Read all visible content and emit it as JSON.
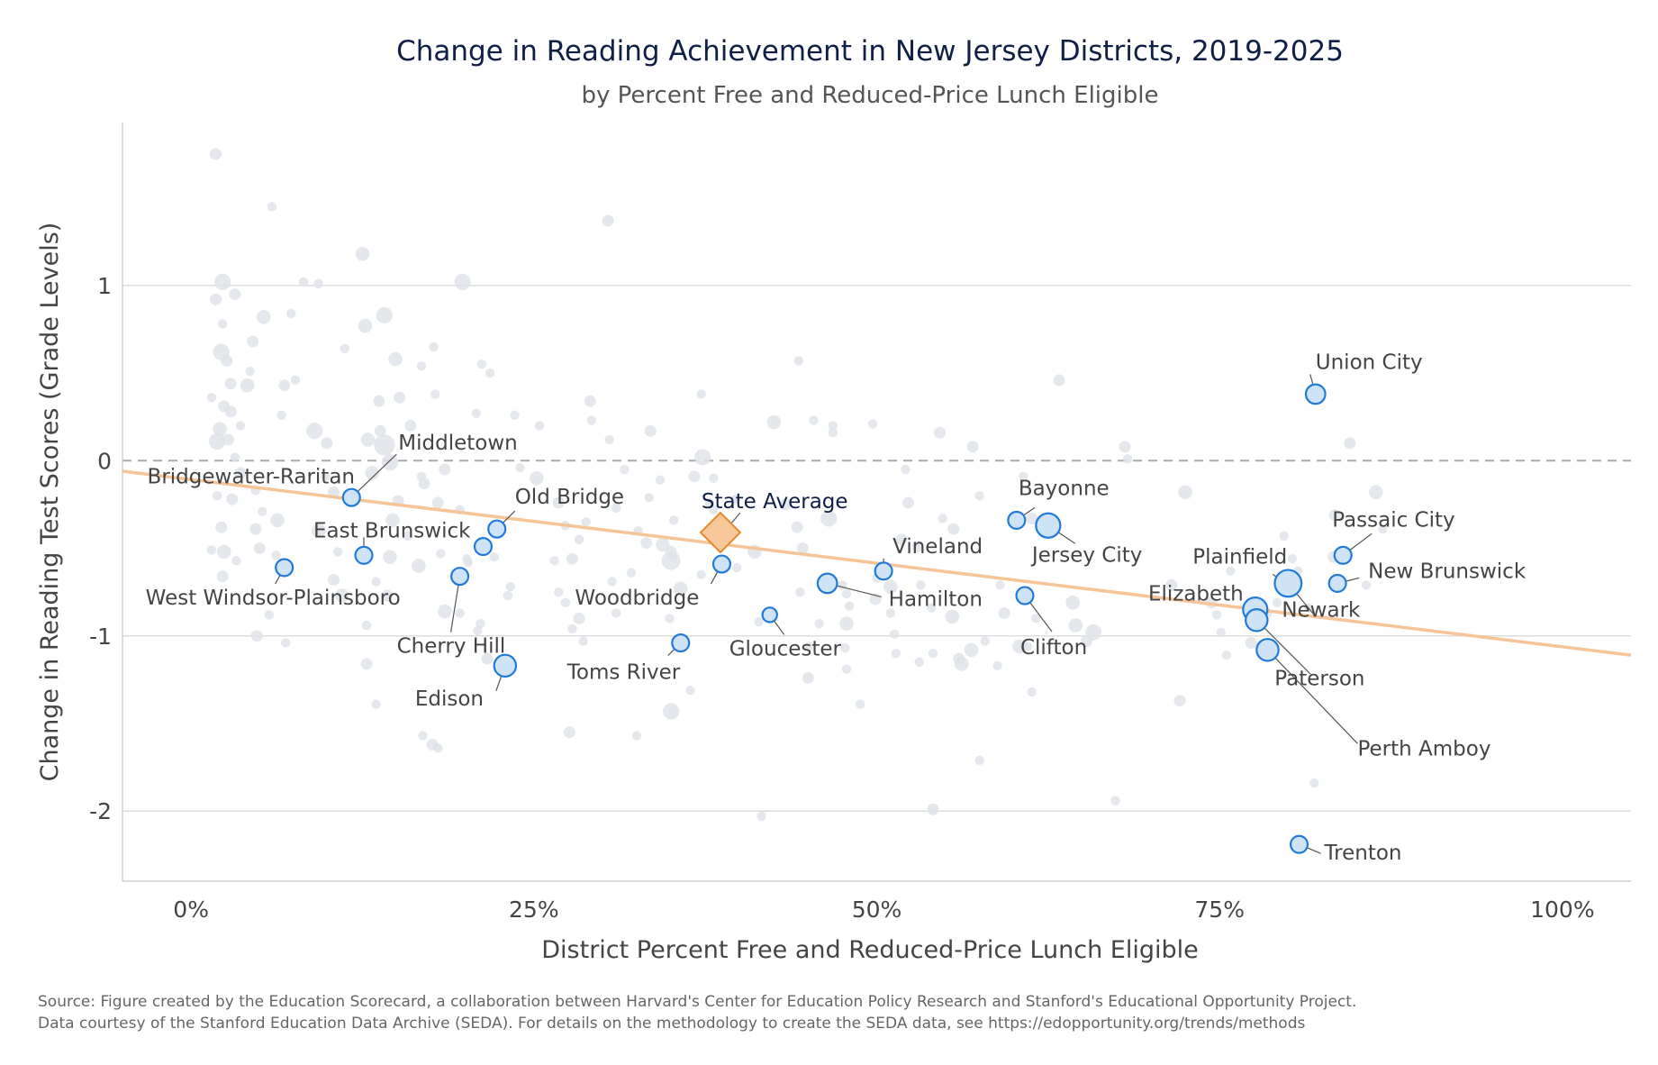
{
  "title": "Change in Reading Achievement in New Jersey Districts, 2019-2025",
  "subtitle": "by Percent Free and Reduced-Price Lunch Eligible",
  "source_line1": "Source: Figure created by the Education Scorecard, a collaboration between Harvard's Center for Education Policy Research and Stanford's Educational Opportunity Project.",
  "source_line2": "Data courtesy of the Stanford Education Data Archive (SEDA). For details on the methodology to create the SEDA data, see https://edopportunity.org/trends/methods",
  "colors": {
    "background_point": "#dfe3e8",
    "highlight_fill": "#cfe3f6",
    "highlight_stroke": "#1f7ad8",
    "state_fill": "#f8c79a",
    "state_stroke": "#e58a2e",
    "trend_line": "#f6c496",
    "grid": "#dddddd",
    "zero_line": "#aaaaaa"
  },
  "chart_data": {
    "type": "scatter",
    "title": "Change in Reading Achievement in New Jersey Districts, 2019-2025",
    "subtitle": "by Percent Free and Reduced-Price Lunch Eligible",
    "xlabel": "District Percent Free and Reduced-Price Lunch Eligible",
    "ylabel": "Change in Reading Test Scores (Grade Levels)",
    "xlim": [
      -0.05,
      1.05
    ],
    "ylim": [
      -2.4,
      1.93
    ],
    "x_ticks": [
      {
        "value": 0,
        "label": "0%"
      },
      {
        "value": 0.25,
        "label": "25%"
      },
      {
        "value": 0.5,
        "label": "50%"
      },
      {
        "value": 0.75,
        "label": "75%"
      },
      {
        "value": 1.0,
        "label": "100%"
      }
    ],
    "y_ticks": [
      {
        "value": 1,
        "label": "1"
      },
      {
        "value": 0,
        "label": "0"
      },
      {
        "value": -1,
        "label": "-1"
      },
      {
        "value": -2,
        "label": "-2"
      }
    ],
    "grid": "horizontal",
    "zero_line": "dashed",
    "trend_line": {
      "x": [
        -0.05,
        1.05
      ],
      "y": [
        -0.06,
        -1.11
      ]
    },
    "state_average": {
      "name": "State Average",
      "x": 0.386,
      "y": -0.41
    },
    "highlighted": [
      {
        "name": "Union City",
        "x": 0.82,
        "y": 0.38,
        "size": 8
      },
      {
        "name": "Middletown",
        "x": 0.117,
        "y": -0.21,
        "size": 7
      },
      {
        "name": "Bridgewater-Raritan",
        "x": 0.126,
        "y": -0.54,
        "size": 7
      },
      {
        "name": "Old Bridge",
        "x": 0.223,
        "y": -0.39,
        "size": 7
      },
      {
        "name": "East Brunswick",
        "x": 0.213,
        "y": -0.49,
        "size": 7
      },
      {
        "name": "West Windsor-Plainsboro",
        "x": 0.068,
        "y": -0.61,
        "size": 7
      },
      {
        "name": "Cherry Hill",
        "x": 0.196,
        "y": -0.66,
        "size": 7
      },
      {
        "name": "Edison",
        "x": 0.229,
        "y": -1.17,
        "size": 9
      },
      {
        "name": "Woodbridge",
        "x": 0.387,
        "y": -0.59,
        "size": 7
      },
      {
        "name": "Toms River",
        "x": 0.357,
        "y": -1.04,
        "size": 7
      },
      {
        "name": "Gloucester",
        "x": 0.422,
        "y": -0.88,
        "size": 6
      },
      {
        "name": "Hamilton",
        "x": 0.464,
        "y": -0.7,
        "size": 8
      },
      {
        "name": "Vineland",
        "x": 0.505,
        "y": -0.63,
        "size": 7
      },
      {
        "name": "Bayonne",
        "x": 0.602,
        "y": -0.34,
        "size": 7
      },
      {
        "name": "Jersey City",
        "x": 0.625,
        "y": -0.37,
        "size": 10
      },
      {
        "name": "Clifton",
        "x": 0.608,
        "y": -0.77,
        "size": 7
      },
      {
        "name": "Plainfield",
        "x": 0.798,
        "y": -0.7,
        "size": 8
      },
      {
        "name": "Newark",
        "x": 0.8,
        "y": -0.7,
        "size": 11
      },
      {
        "name": "Elizabeth",
        "x": 0.776,
        "y": -0.85,
        "size": 10
      },
      {
        "name": "Paterson",
        "x": 0.777,
        "y": -0.91,
        "size": 9
      },
      {
        "name": "Perth Amboy",
        "x": 0.785,
        "y": -1.08,
        "size": 9
      },
      {
        "name": "Passaic City",
        "x": 0.84,
        "y": -0.54,
        "size": 7
      },
      {
        "name": "New Brunswick",
        "x": 0.836,
        "y": -0.7,
        "size": 7
      },
      {
        "name": "Trenton",
        "x": 0.808,
        "y": -2.19,
        "size": 7
      }
    ],
    "other_districts": [
      [
        0.018,
        1.75,
        5
      ],
      [
        0.059,
        1.45,
        4
      ],
      [
        0.023,
        1.02,
        7
      ],
      [
        0.082,
        1.02,
        4
      ],
      [
        0.032,
        0.95,
        5
      ],
      [
        0.018,
        0.92,
        5
      ],
      [
        0.053,
        0.82,
        6
      ],
      [
        0.073,
        0.84,
        4
      ],
      [
        0.023,
        0.78,
        4
      ],
      [
        0.045,
        0.68,
        5
      ],
      [
        0.022,
        0.62,
        7
      ],
      [
        0.026,
        0.57,
        5
      ],
      [
        0.029,
        0.44,
        5
      ],
      [
        0.041,
        0.43,
        6
      ],
      [
        0.043,
        0.51,
        4
      ],
      [
        0.068,
        0.43,
        5
      ],
      [
        0.076,
        0.46,
        4
      ],
      [
        0.015,
        0.36,
        4
      ],
      [
        0.024,
        0.31,
        5
      ],
      [
        0.029,
        0.28,
        5
      ],
      [
        0.066,
        0.26,
        4
      ],
      [
        0.036,
        0.2,
        4
      ],
      [
        0.021,
        0.18,
        6
      ],
      [
        0.019,
        0.11,
        7
      ],
      [
        0.027,
        0.12,
        5
      ],
      [
        0.032,
        0.02,
        4
      ],
      [
        0.036,
        -0.07,
        5
      ],
      [
        0.047,
        -0.17,
        4
      ],
      [
        0.019,
        -0.2,
        4
      ],
      [
        0.03,
        -0.22,
        5
      ],
      [
        0.052,
        -0.29,
        4
      ],
      [
        0.063,
        -0.34,
        6
      ],
      [
        0.022,
        -0.38,
        5
      ],
      [
        0.047,
        -0.39,
        5
      ],
      [
        0.015,
        -0.51,
        4
      ],
      [
        0.024,
        -0.52,
        6
      ],
      [
        0.05,
        -0.5,
        5
      ],
      [
        0.033,
        -0.57,
        4
      ],
      [
        0.062,
        -0.54,
        4
      ],
      [
        0.023,
        -0.66,
        5
      ],
      [
        0.057,
        -0.88,
        4
      ],
      [
        0.048,
        -1.0,
        5
      ],
      [
        0.069,
        -1.04,
        4
      ],
      [
        0.093,
        1.01,
        4
      ],
      [
        0.09,
        0.17,
        7
      ],
      [
        0.099,
        0.1,
        5
      ],
      [
        0.098,
        -0.09,
        4
      ],
      [
        0.104,
        -0.18,
        5
      ],
      [
        0.093,
        -0.4,
        6
      ],
      [
        0.107,
        -0.52,
        4
      ],
      [
        0.104,
        -0.68,
        5
      ],
      [
        0.11,
        -0.77,
        6
      ],
      [
        0.112,
        0.64,
        4
      ],
      [
        0.125,
        1.18,
        6
      ],
      [
        0.127,
        0.77,
        6
      ],
      [
        0.141,
        0.83,
        7
      ],
      [
        0.137,
        0.34,
        5
      ],
      [
        0.138,
        0.17,
        5
      ],
      [
        0.129,
        0.12,
        6
      ],
      [
        0.141,
        0.09,
        9
      ],
      [
        0.145,
        -0.01,
        7
      ],
      [
        0.132,
        -0.07,
        6
      ],
      [
        0.151,
        -0.23,
        5
      ],
      [
        0.147,
        -0.34,
        6
      ],
      [
        0.145,
        -0.55,
        6
      ],
      [
        0.135,
        -0.69,
        4
      ],
      [
        0.143,
        -0.77,
        5
      ],
      [
        0.128,
        -0.94,
        4
      ],
      [
        0.128,
        -1.16,
        5
      ],
      [
        0.135,
        -1.39,
        4
      ],
      [
        0.149,
        0.58,
        6
      ],
      [
        0.152,
        0.36,
        5
      ],
      [
        0.16,
        0.2,
        5
      ],
      [
        0.168,
        -0.09,
        4
      ],
      [
        0.17,
        -0.13,
        5
      ],
      [
        0.18,
        -0.24,
        5
      ],
      [
        0.158,
        -0.43,
        4
      ],
      [
        0.166,
        -0.6,
        6
      ],
      [
        0.169,
        -1.57,
        4
      ],
      [
        0.176,
        -1.62,
        5
      ],
      [
        0.18,
        -1.64,
        4
      ],
      [
        0.168,
        0.54,
        4
      ],
      [
        0.177,
        0.65,
        4
      ],
      [
        0.178,
        0.38,
        4
      ],
      [
        0.185,
        -0.05,
        5
      ],
      [
        0.182,
        -0.53,
        4
      ],
      [
        0.185,
        -0.86,
        6
      ],
      [
        0.202,
        -0.58,
        4
      ],
      [
        0.196,
        -0.28,
        4
      ],
      [
        0.201,
        -0.56,
        4
      ],
      [
        0.196,
        -0.87,
        4
      ],
      [
        0.208,
        0.27,
        4
      ],
      [
        0.218,
        0.5,
        4
      ],
      [
        0.212,
        0.55,
        4
      ],
      [
        0.236,
        0.26,
        4
      ],
      [
        0.254,
        0.2,
        4
      ],
      [
        0.211,
        -0.93,
        4
      ],
      [
        0.221,
        -0.55,
        4
      ],
      [
        0.231,
        -0.77,
        4
      ],
      [
        0.233,
        -0.72,
        4
      ],
      [
        0.216,
        -1.13,
        5
      ],
      [
        0.209,
        -0.97,
        4
      ],
      [
        0.198,
        1.02,
        7
      ],
      [
        0.24,
        -0.04,
        4
      ],
      [
        0.252,
        -0.1,
        6
      ],
      [
        0.268,
        -0.24,
        5
      ],
      [
        0.273,
        -0.37,
        4
      ],
      [
        0.288,
        -0.35,
        4
      ],
      [
        0.283,
        -0.45,
        4
      ],
      [
        0.278,
        -0.56,
        5
      ],
      [
        0.265,
        -0.57,
        4
      ],
      [
        0.268,
        -0.75,
        4
      ],
      [
        0.273,
        -0.81,
        4
      ],
      [
        0.283,
        -0.9,
        5
      ],
      [
        0.278,
        -0.96,
        4
      ],
      [
        0.286,
        -1.03,
        4
      ],
      [
        0.276,
        -1.55,
        5
      ],
      [
        0.291,
        0.34,
        5
      ],
      [
        0.292,
        0.23,
        4
      ],
      [
        0.304,
        1.37,
        5
      ],
      [
        0.305,
        0.12,
        4
      ],
      [
        0.316,
        -0.05,
        4
      ],
      [
        0.31,
        -0.27,
        4
      ],
      [
        0.326,
        -0.4,
        4
      ],
      [
        0.332,
        -0.47,
        5
      ],
      [
        0.321,
        -0.64,
        4
      ],
      [
        0.307,
        -0.69,
        4
      ],
      [
        0.31,
        -0.87,
        4
      ],
      [
        0.325,
        -1.57,
        4
      ],
      [
        0.335,
        0.17,
        5
      ],
      [
        0.342,
        -0.11,
        4
      ],
      [
        0.334,
        -0.21,
        4
      ],
      [
        0.35,
        -0.52,
        5
      ],
      [
        0.344,
        -0.48,
        6
      ],
      [
        0.35,
        -0.57,
        8
      ],
      [
        0.352,
        -0.34,
        4
      ],
      [
        0.357,
        -0.73,
        6
      ],
      [
        0.349,
        -0.9,
        4
      ],
      [
        0.35,
        -1.43,
        7
      ],
      [
        0.364,
        -1.31,
        4
      ],
      [
        0.372,
        0.38,
        4
      ],
      [
        0.373,
        0.02,
        7
      ],
      [
        0.367,
        -0.09,
        5
      ],
      [
        0.381,
        -0.1,
        4
      ],
      [
        0.378,
        -0.24,
        4
      ],
      [
        0.381,
        -0.28,
        4
      ],
      [
        0.372,
        -0.65,
        4
      ],
      [
        0.397,
        -0.22,
        4
      ],
      [
        0.398,
        -0.61,
        4
      ],
      [
        0.411,
        -0.52,
        6
      ],
      [
        0.414,
        -0.92,
        4
      ],
      [
        0.416,
        -2.03,
        4
      ],
      [
        0.425,
        0.22,
        6
      ],
      [
        0.433,
        -0.25,
        5
      ],
      [
        0.443,
        0.57,
        4
      ],
      [
        0.442,
        -0.38,
        5
      ],
      [
        0.446,
        -0.5,
        5
      ],
      [
        0.444,
        -0.75,
        4
      ],
      [
        0.45,
        -1.06,
        4
      ],
      [
        0.45,
        -1.24,
        5
      ],
      [
        0.458,
        -0.93,
        4
      ],
      [
        0.454,
        0.23,
        4
      ],
      [
        0.468,
        0.16,
        4
      ],
      [
        0.468,
        0.2,
        4
      ],
      [
        0.465,
        -0.33,
        7
      ],
      [
        0.475,
        -0.71,
        4
      ],
      [
        0.478,
        -0.76,
        4
      ],
      [
        0.48,
        -0.83,
        4
      ],
      [
        0.478,
        -0.93,
        6
      ],
      [
        0.477,
        -1.07,
        4
      ],
      [
        0.478,
        -1.19,
        4
      ],
      [
        0.488,
        -1.39,
        4
      ],
      [
        0.497,
        0.21,
        4
      ],
      [
        0.5,
        -0.67,
        4
      ],
      [
        0.499,
        -0.79,
        5
      ],
      [
        0.51,
        -0.72,
        6
      ],
      [
        0.51,
        -0.87,
        4
      ],
      [
        0.518,
        -0.45,
        5
      ],
      [
        0.513,
        -0.99,
        4
      ],
      [
        0.514,
        -1.1,
        4
      ],
      [
        0.521,
        -0.05,
        4
      ],
      [
        0.523,
        -0.24,
        5
      ],
      [
        0.53,
        -0.49,
        5
      ],
      [
        0.532,
        -0.71,
        4
      ],
      [
        0.54,
        -0.84,
        4
      ],
      [
        0.531,
        -1.15,
        4
      ],
      [
        0.541,
        -1.99,
        5
      ],
      [
        0.541,
        -1.1,
        4
      ],
      [
        0.546,
        0.16,
        5
      ],
      [
        0.548,
        -0.33,
        4
      ],
      [
        0.556,
        -0.39,
        5
      ],
      [
        0.555,
        -0.89,
        6
      ],
      [
        0.56,
        -1.13,
        5
      ],
      [
        0.562,
        -1.16,
        6
      ],
      [
        0.569,
        -1.08,
        6
      ],
      [
        0.57,
        0.08,
        5
      ],
      [
        0.575,
        -0.2,
        4
      ],
      [
        0.575,
        -1.71,
        4
      ],
      [
        0.579,
        -1.03,
        4
      ],
      [
        0.588,
        -1.17,
        4
      ],
      [
        0.59,
        -0.71,
        4
      ],
      [
        0.593,
        -0.87,
        5
      ],
      [
        0.604,
        -1.06,
        6
      ],
      [
        0.607,
        -0.09,
        4
      ],
      [
        0.613,
        -0.33,
        5
      ],
      [
        0.613,
        -1.32,
        4
      ],
      [
        0.61,
        -1.06,
        4
      ],
      [
        0.616,
        -0.9,
        4
      ],
      [
        0.623,
        -0.41,
        5
      ],
      [
        0.633,
        0.46,
        5
      ],
      [
        0.643,
        -0.81,
        6
      ],
      [
        0.645,
        -0.94,
        6
      ],
      [
        0.658,
        -0.98,
        7
      ],
      [
        0.653,
        -1.03,
        5
      ],
      [
        0.681,
        0.08,
        5
      ],
      [
        0.683,
        0.01,
        4
      ],
      [
        0.674,
        -1.94,
        4
      ],
      [
        0.715,
        -0.71,
        5
      ],
      [
        0.721,
        -1.37,
        5
      ],
      [
        0.725,
        -0.18,
        6
      ],
      [
        0.744,
        -0.81,
        5
      ],
      [
        0.748,
        -0.88,
        4
      ],
      [
        0.751,
        -0.98,
        4
      ],
      [
        0.755,
        -1.11,
        4
      ],
      [
        0.758,
        -0.63,
        4
      ],
      [
        0.773,
        -1.04,
        5
      ],
      [
        0.785,
        -0.87,
        4
      ],
      [
        0.792,
        -0.81,
        4
      ],
      [
        0.797,
        -0.43,
        4
      ],
      [
        0.803,
        -0.56,
        4
      ],
      [
        0.807,
        -0.63,
        4
      ],
      [
        0.815,
        -0.84,
        4
      ],
      [
        0.819,
        -1.84,
        4
      ],
      [
        0.833,
        -0.55,
        5
      ],
      [
        0.834,
        -0.31,
        5
      ],
      [
        0.845,
        0.1,
        5
      ],
      [
        0.857,
        -0.71,
        4
      ],
      [
        0.864,
        -0.18,
        6
      ],
      [
        0.869,
        -0.39,
        4
      ]
    ]
  }
}
